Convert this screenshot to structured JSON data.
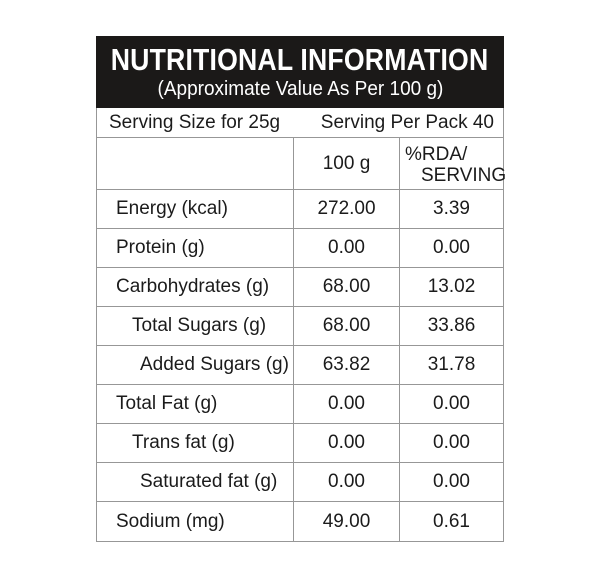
{
  "header": {
    "title": "NUTRITIONAL INFORMATION",
    "subtitle": "(Approximate Value As Per 100 g)"
  },
  "serving": {
    "left": "Serving Size for 25g",
    "right": "Serving Per Pack 40"
  },
  "columns": {
    "amount": "100 g",
    "rda_line1": "%RDA/",
    "rda_line2": "SERVING"
  },
  "rows": [
    {
      "label": "Energy (kcal)",
      "indent": 0,
      "amount": "272.00",
      "rda": "3.39"
    },
    {
      "label": "Protein (g)",
      "indent": 0,
      "amount": "0.00",
      "rda": "0.00"
    },
    {
      "label": "Carbohydrates (g)",
      "indent": 0,
      "amount": "68.00",
      "rda": "13.02"
    },
    {
      "label": "Total Sugars (g)",
      "indent": 1,
      "amount": "68.00",
      "rda": "33.86"
    },
    {
      "label": "Added Sugars (g)",
      "indent": 2,
      "amount": "63.82",
      "rda": "31.78"
    },
    {
      "label": "Total Fat (g)",
      "indent": 0,
      "amount": "0.00",
      "rda": "0.00"
    },
    {
      "label": "Trans fat (g)",
      "indent": 1,
      "amount": "0.00",
      "rda": "0.00"
    },
    {
      "label": "Saturated fat (g)",
      "indent": 2,
      "amount": "0.00",
      "rda": "0.00"
    },
    {
      "label": "Sodium (mg)",
      "indent": 0,
      "amount": "49.00",
      "rda": "0.61"
    }
  ],
  "colors": {
    "header_bg": "#1b1918",
    "header_fg": "#ffffff",
    "border": "#979797",
    "text": "#1b1b1b"
  }
}
